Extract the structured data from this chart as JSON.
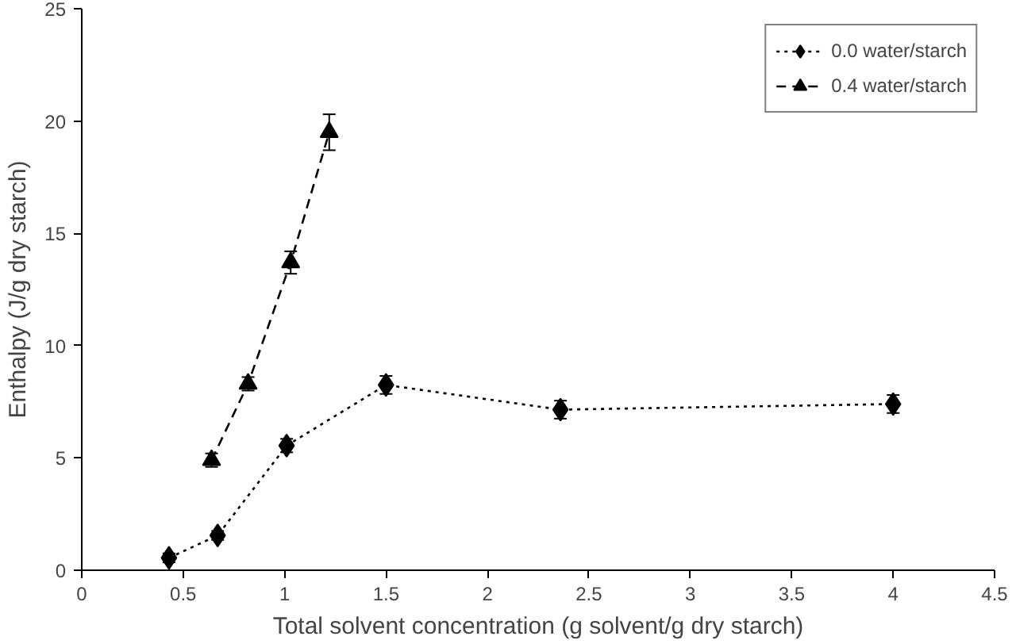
{
  "chart_data": {
    "type": "line",
    "xlabel": "Total solvent concentration (g solvent/g dry starch)",
    "ylabel": "Enthalpy (J/g dry starch)",
    "xlim": [
      0,
      4.5
    ],
    "xticks": [
      0,
      0.5,
      1,
      1.5,
      2,
      2.5,
      3,
      3.5,
      4,
      4.5
    ],
    "ylim": [
      0,
      25
    ],
    "yticks": [
      0,
      5,
      10,
      15,
      20,
      25
    ],
    "grid": false,
    "legend": "top right",
    "series": [
      {
        "name": "0.0 water/starch",
        "color": "#000000",
        "marker": "diamond",
        "line_style": "dotted",
        "x": [
          0.43,
          0.67,
          1.01,
          1.5,
          2.36,
          4.0
        ],
        "values": [
          0.55,
          1.55,
          5.55,
          8.25,
          7.15,
          7.4
        ],
        "errors": [
          0.2,
          0.2,
          0.3,
          0.4,
          0.4,
          0.4
        ]
      },
      {
        "name": "0.4 water/starch",
        "color": "#000000",
        "marker": "triangle",
        "line_style": "dashed",
        "x": [
          0.64,
          0.82,
          1.03,
          1.22
        ],
        "values": [
          4.9,
          8.3,
          13.7,
          19.5
        ],
        "errors": [
          0.3,
          0.3,
          0.5,
          0.8
        ]
      }
    ]
  }
}
